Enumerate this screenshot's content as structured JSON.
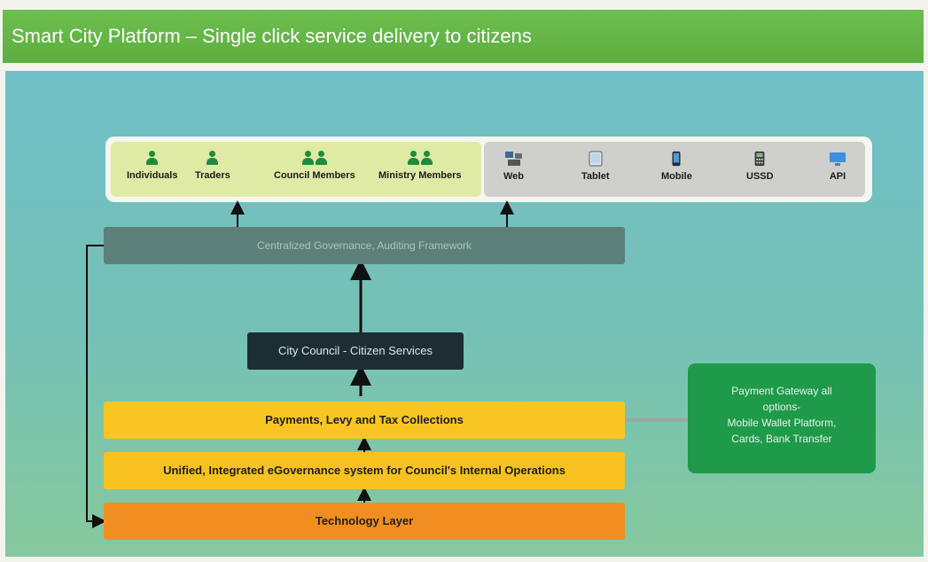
{
  "title": "Smart City Platform – Single click service delivery to citizens",
  "users": [
    {
      "label": "Individuals",
      "icon": "person-icon",
      "count": 1
    },
    {
      "label": "Traders",
      "icon": "person-icon",
      "count": 1
    },
    {
      "label": "Council Members",
      "icon": "people-icon",
      "count": 2
    },
    {
      "label": "Ministry Members",
      "icon": "people-icon",
      "count": 2
    }
  ],
  "channels": [
    {
      "label": "Web",
      "icon": "web-icon"
    },
    {
      "label": "Tablet",
      "icon": "tablet-icon"
    },
    {
      "label": "Mobile",
      "icon": "mobile-icon"
    },
    {
      "label": "USSD",
      "icon": "ussd-icon"
    },
    {
      "label": "API",
      "icon": "api-icon"
    }
  ],
  "layers": {
    "governance": "Centralized Governance, Auditing Framework",
    "council": "City Council - Citizen Services",
    "payments": "Payments, Levy and Tax Collections",
    "egov": "Unified, Integrated eGovernance system for Council's Internal Operations",
    "tech": "Technology Layer"
  },
  "gateway": {
    "line1": "Payment Gateway all",
    "line2": "options-",
    "line3": "Mobile Wallet Platform,",
    "line4": "Cards, Bank Transfer"
  },
  "colors": {
    "title_bar": "#5cae40",
    "governance": "#5d7f79",
    "council": "#1c2e33",
    "payments": "#f9c522",
    "tech": "#f18e21",
    "gateway": "#1f9a4a",
    "person": "#1e8c3a"
  }
}
